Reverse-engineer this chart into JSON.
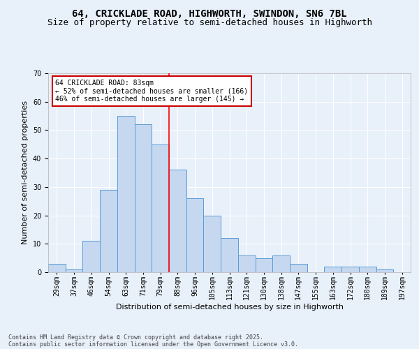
{
  "title1": "64, CRICKLADE ROAD, HIGHWORTH, SWINDON, SN6 7BL",
  "title2": "Size of property relative to semi-detached houses in Highworth",
  "xlabel": "Distribution of semi-detached houses by size in Highworth",
  "ylabel": "Number of semi-detached properties",
  "categories": [
    "29sqm",
    "37sqm",
    "46sqm",
    "54sqm",
    "63sqm",
    "71sqm",
    "79sqm",
    "88sqm",
    "96sqm",
    "105sqm",
    "113sqm",
    "121sqm",
    "130sqm",
    "138sqm",
    "147sqm",
    "155sqm",
    "163sqm",
    "172sqm",
    "180sqm",
    "189sqm",
    "197sqm"
  ],
  "values": [
    3,
    1,
    11,
    29,
    55,
    52,
    45,
    36,
    26,
    20,
    12,
    6,
    5,
    6,
    3,
    0,
    2,
    2,
    2,
    1,
    0
  ],
  "bar_color": "#c5d8f0",
  "bar_edge_color": "#5b9bd5",
  "red_line_bar_index": 7,
  "annotation_title": "64 CRICKLADE ROAD: 83sqm",
  "annotation_line2": "← 52% of semi-detached houses are smaller (166)",
  "annotation_line3": "46% of semi-detached houses are larger (145) →",
  "annotation_box_color": "#ffffff",
  "annotation_border_color": "#cc0000",
  "ylim": [
    0,
    70
  ],
  "yticks": [
    0,
    10,
    20,
    30,
    40,
    50,
    60,
    70
  ],
  "background_color": "#e8f0fa",
  "footer_line1": "Contains HM Land Registry data © Crown copyright and database right 2025.",
  "footer_line2": "Contains public sector information licensed under the Open Government Licence v3.0.",
  "grid_color": "#ffffff",
  "title_fontsize": 10,
  "subtitle_fontsize": 9,
  "axis_label_fontsize": 8,
  "tick_fontsize": 7,
  "footer_fontsize": 6
}
